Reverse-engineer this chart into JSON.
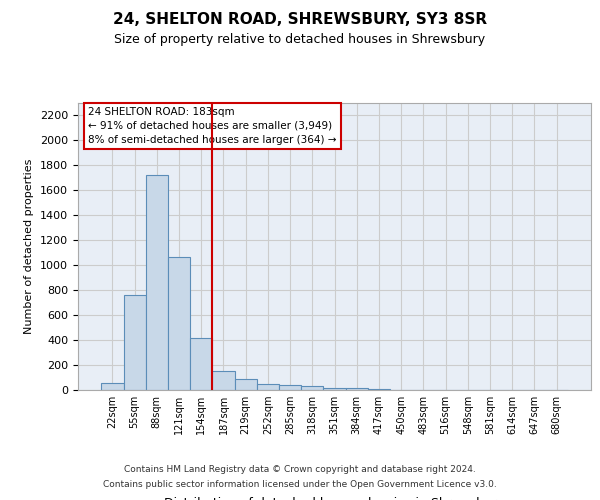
{
  "title1": "24, SHELTON ROAD, SHREWSBURY, SY3 8SR",
  "title2": "Size of property relative to detached houses in Shrewsbury",
  "xlabel": "Distribution of detached houses by size in Shrewsbury",
  "ylabel": "Number of detached properties",
  "bar_labels": [
    "22sqm",
    "55sqm",
    "88sqm",
    "121sqm",
    "154sqm",
    "187sqm",
    "219sqm",
    "252sqm",
    "285sqm",
    "318sqm",
    "351sqm",
    "384sqm",
    "417sqm",
    "450sqm",
    "483sqm",
    "516sqm",
    "548sqm",
    "581sqm",
    "614sqm",
    "647sqm",
    "680sqm"
  ],
  "bar_values": [
    55,
    760,
    1720,
    1065,
    420,
    150,
    85,
    45,
    38,
    30,
    20,
    18,
    5,
    3,
    2,
    1,
    1,
    0,
    0,
    0,
    0
  ],
  "bar_color": "#c8d8e8",
  "bar_edgecolor": "#5b8db8",
  "grid_color": "#cccccc",
  "bg_color": "#e8eef6",
  "vline_color": "#cc0000",
  "property_label": "24 SHELTON ROAD: 183sqm",
  "annotation_line1": "← 91% of detached houses are smaller (3,949)",
  "annotation_line2": "8% of semi-detached houses are larger (364) →",
  "annotation_box_color": "#ffffff",
  "annotation_box_edgecolor": "#cc0000",
  "ylim": [
    0,
    2300
  ],
  "yticks": [
    0,
    200,
    400,
    600,
    800,
    1000,
    1200,
    1400,
    1600,
    1800,
    2000,
    2200
  ],
  "footer1": "Contains HM Land Registry data © Crown copyright and database right 2024.",
  "footer2": "Contains public sector information licensed under the Open Government Licence v3.0."
}
